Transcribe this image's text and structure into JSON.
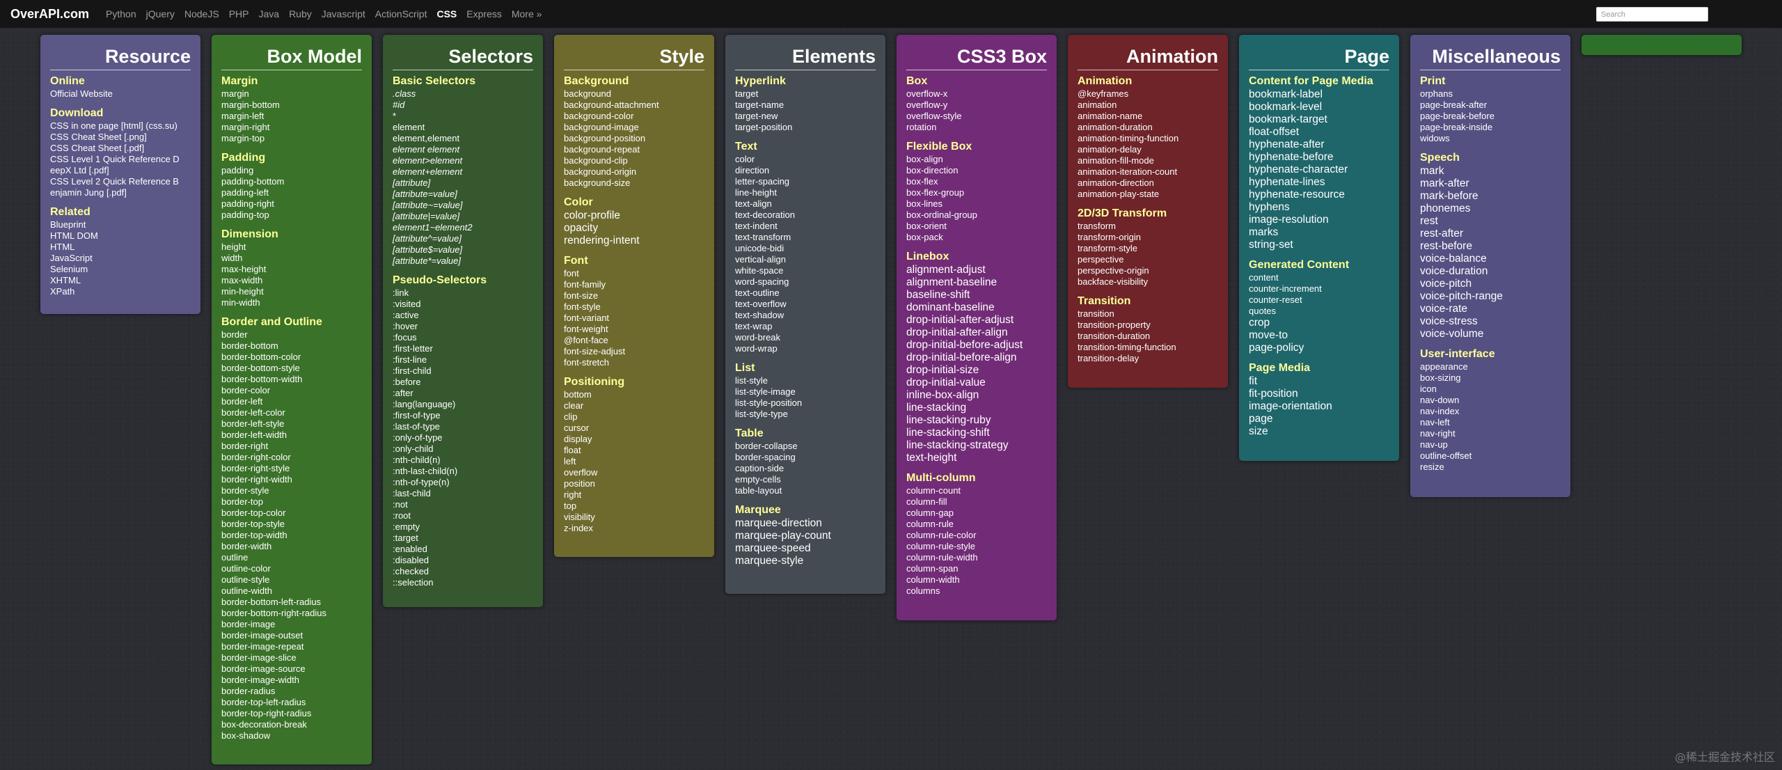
{
  "nav": {
    "brand": "OverAPI.com",
    "links": [
      "Python",
      "jQuery",
      "NodeJS",
      "PHP",
      "Java",
      "Ruby",
      "Javascript",
      "ActionScript",
      "CSS",
      "Express",
      "More »"
    ],
    "active": "CSS",
    "search_placeholder": "Search"
  },
  "columns": {
    "resource": {
      "title": "Resource",
      "sections": [
        {
          "title": "Online",
          "items": [
            "Official Website"
          ]
        },
        {
          "title": "Download",
          "items": [
            "CSS in one page [html] (css.su)",
            "CSS Cheat Sheet [.png]",
            "CSS Cheat Sheet [.pdf]",
            "CSS Level 1 Quick Reference D",
            "eepX Ltd [.pdf]",
            "CSS Level 2 Quick Reference B",
            "enjamin Jung [.pdf]"
          ]
        },
        {
          "title": "Related",
          "items": [
            "Blueprint",
            "HTML DOM",
            "HTML",
            "JavaScript",
            "Selenium",
            "XHTML",
            "XPath"
          ]
        }
      ]
    },
    "box": {
      "title": "Box Model",
      "sections": [
        {
          "title": "Margin",
          "items": [
            "margin",
            "margin-bottom",
            "margin-left",
            "margin-right",
            "margin-top"
          ]
        },
        {
          "title": "Padding",
          "items": [
            "padding",
            "padding-bottom",
            "padding-left",
            "padding-right",
            "padding-top"
          ]
        },
        {
          "title": "Dimension",
          "items": [
            "height",
            "width",
            "max-height",
            "max-width",
            "min-height",
            "min-width"
          ]
        },
        {
          "title": "Border and Outline",
          "items": [
            "border",
            "border-bottom",
            "border-bottom-color",
            "border-bottom-style",
            "border-bottom-width",
            "border-color",
            "border-left",
            "border-left-color",
            "border-left-style",
            "border-left-width",
            "border-right",
            "border-right-color",
            "border-right-style",
            "border-right-width",
            "border-style",
            "border-top",
            "border-top-color",
            "border-top-style",
            "border-top-width",
            "border-width",
            "outline",
            "outline-color",
            "outline-style",
            "outline-width",
            "border-bottom-left-radius",
            "border-bottom-right-radius",
            "border-image",
            "border-image-outset",
            "border-image-repeat",
            "border-image-slice",
            "border-image-source",
            "border-image-width",
            "border-radius",
            "border-top-left-radius",
            "border-top-right-radius",
            "box-decoration-break",
            "box-shadow"
          ]
        }
      ]
    },
    "selectors": {
      "title": "Selectors",
      "sections": [
        {
          "title": "Basic Selectors",
          "items": [
            ".class",
            "#id",
            "*",
            "element",
            "element,element",
            "element element",
            "element>element",
            "element+element",
            "[attribute]",
            "[attribute=value]",
            "[attribute~=value]",
            "[attribute|=value]",
            "element1~element2",
            "[attribute^=value]",
            "[attribute$=value]",
            "[attribute*=value]"
          ]
        },
        {
          "title": "Pseudo-Selectors",
          "items": [
            ":link",
            ":visited",
            ":active",
            ":hover",
            ":focus",
            ":first-letter",
            ":first-line",
            ":first-child",
            ":before",
            ":after",
            ":lang(language)",
            ":first-of-type",
            ":last-of-type",
            ":only-of-type",
            ":only-child",
            ":nth-child(n)",
            ":nth-last-child(n)",
            ":nth-of-type(n)",
            ":last-child",
            ":not",
            ":root",
            ":empty",
            ":target",
            ":enabled",
            ":disabled",
            ":checked",
            "::selection"
          ]
        }
      ]
    },
    "style": {
      "title": "Style",
      "sections": [
        {
          "title": "Background",
          "items": [
            "background",
            "background-attachment",
            "background-color",
            "background-image",
            "background-position",
            "background-repeat",
            "background-clip",
            "background-origin",
            "background-size"
          ]
        },
        {
          "title": "Color",
          "items": [
            "color-profile",
            "opacity",
            "rendering-intent"
          ]
        },
        {
          "title": "Font",
          "items": [
            "font",
            "font-family",
            "font-size",
            "font-style",
            "font-variant",
            "font-weight",
            "@font-face",
            "font-size-adjust",
            "font-stretch"
          ]
        },
        {
          "title": "Positioning",
          "items": [
            "bottom",
            "clear",
            "clip",
            "cursor",
            "display",
            "float",
            "left",
            "overflow",
            "position",
            "right",
            "top",
            "visibility",
            "z-index"
          ]
        }
      ]
    },
    "elements": {
      "title": "Elements",
      "sections": [
        {
          "title": "Hyperlink",
          "items": [
            "target",
            "target-name",
            "target-new",
            "target-position"
          ]
        },
        {
          "title": "Text",
          "items": [
            "color",
            "direction",
            "letter-spacing",
            "line-height",
            "text-align",
            "text-decoration",
            "text-indent",
            "text-transform",
            "unicode-bidi",
            "vertical-align",
            "white-space",
            "word-spacing",
            "text-outline",
            "text-overflow",
            "text-shadow",
            "text-wrap",
            "word-break",
            "word-wrap"
          ]
        },
        {
          "title": "List",
          "items": [
            "list-style",
            "list-style-image",
            "list-style-position",
            "list-style-type"
          ]
        },
        {
          "title": "Table",
          "items": [
            "border-collapse",
            "border-spacing",
            "caption-side",
            "empty-cells",
            "table-layout"
          ]
        },
        {
          "title": "Marquee",
          "items": [
            "marquee-direction",
            "marquee-play-count",
            "marquee-speed",
            "marquee-style"
          ]
        }
      ]
    },
    "css3": {
      "title": "CSS3 Box",
      "sections": [
        {
          "title": "Box",
          "items": [
            "overflow-x",
            "overflow-y",
            "overflow-style",
            "rotation"
          ]
        },
        {
          "title": "Flexible Box",
          "items": [
            "box-align",
            "box-direction",
            "box-flex",
            "box-flex-group",
            "box-lines",
            "box-ordinal-group",
            "box-orient",
            "box-pack"
          ]
        },
        {
          "title": "Linebox",
          "items": [
            "alignment-adjust",
            "alignment-baseline",
            "baseline-shift",
            "dominant-baseline",
            "drop-initial-after-adjust",
            "drop-initial-after-align",
            "drop-initial-before-adjust",
            "drop-initial-before-align",
            "drop-initial-size",
            "drop-initial-value",
            "inline-box-align",
            "line-stacking",
            "line-stacking-ruby",
            "line-stacking-shift",
            "line-stacking-strategy",
            "text-height"
          ]
        },
        {
          "title": "Multi-column",
          "items": [
            "column-count",
            "column-fill",
            "column-gap",
            "column-rule",
            "column-rule-color",
            "column-rule-style",
            "column-rule-width",
            "column-span",
            "column-width",
            "columns"
          ]
        }
      ]
    },
    "anim": {
      "title": "Animation",
      "sections": [
        {
          "title": "Animation",
          "items": [
            "@keyframes",
            "animation",
            "animation-name",
            "animation-duration",
            "animation-timing-function",
            "animation-delay",
            "animation-fill-mode",
            "animation-iteration-count",
            "animation-direction",
            "animation-play-state"
          ]
        },
        {
          "title": "2D/3D Transform",
          "items": [
            "transform",
            "transform-origin",
            "transform-style",
            "perspective",
            "perspective-origin",
            "backface-visibility"
          ]
        },
        {
          "title": "Transition",
          "items": [
            "transition",
            "transition-property",
            "transition-duration",
            "transition-timing-function",
            "transition-delay"
          ]
        }
      ]
    },
    "page": {
      "title": "Page",
      "sections": [
        {
          "title": "Content for Page Media",
          "items": [
            "bookmark-label",
            "bookmark-level",
            "bookmark-target",
            "float-offset",
            "hyphenate-after",
            "hyphenate-before",
            "hyphenate-character",
            "hyphenate-lines",
            "hyphenate-resource",
            "hyphens",
            "image-resolution",
            "marks",
            "string-set"
          ]
        },
        {
          "title": "Generated Content",
          "items": [
            "content",
            "counter-increment",
            "counter-reset",
            "quotes",
            "crop",
            "move-to",
            "page-policy"
          ]
        },
        {
          "title": "Page Media",
          "items": [
            "fit",
            "fit-position",
            "image-orientation",
            "page",
            "size"
          ]
        }
      ]
    },
    "misc": {
      "title": "Miscellaneous",
      "sections": [
        {
          "title": "Print",
          "items": [
            "orphans",
            "page-break-after",
            "page-break-before",
            "page-break-inside",
            "widows"
          ]
        },
        {
          "title": "Speech",
          "items": [
            "mark",
            "mark-after",
            "mark-before",
            "phonemes",
            "rest",
            "rest-after",
            "rest-before",
            "voice-balance",
            "voice-duration",
            "voice-pitch",
            "voice-pitch-range",
            "voice-rate",
            "voice-stress",
            "voice-volume"
          ]
        },
        {
          "title": "User-interface",
          "items": [
            "appearance",
            "box-sizing",
            "icon",
            "nav-down",
            "nav-index",
            "nav-left",
            "nav-right",
            "nav-up",
            "outline-offset",
            "resize"
          ]
        }
      ]
    }
  },
  "watermark": "@稀土掘金技术社区",
  "colors": {
    "background": "#2b2d33",
    "topbar": "#151515",
    "section_title": "#ffff99"
  }
}
